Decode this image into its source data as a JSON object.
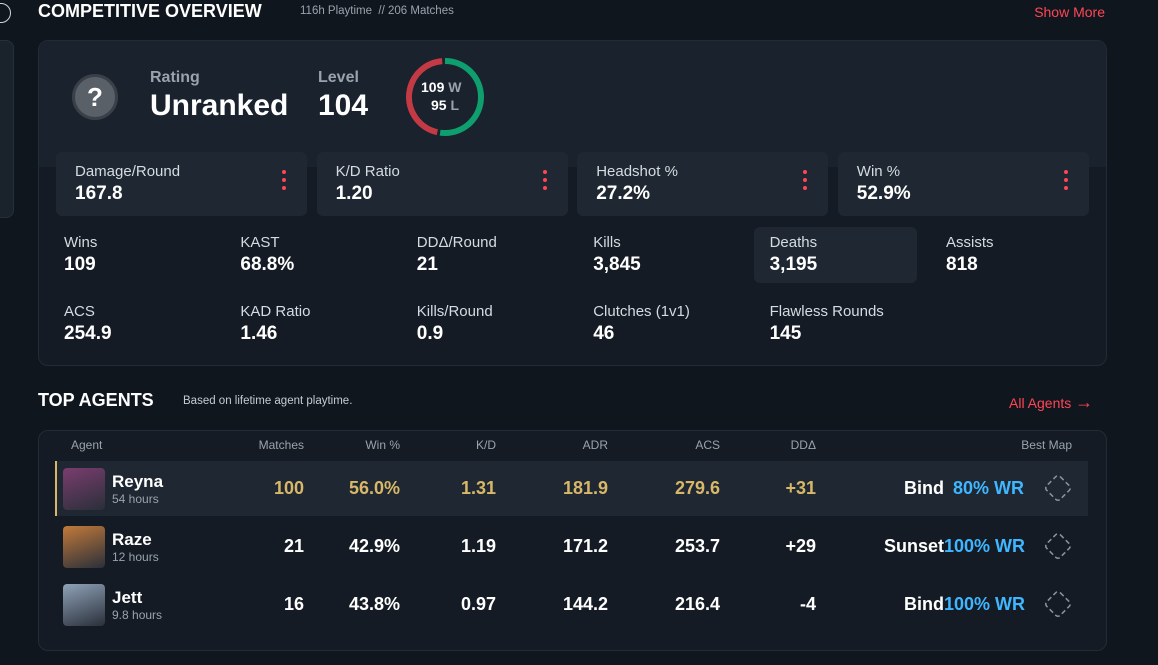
{
  "header": {
    "title": "COMPETITIVE OVERVIEW",
    "subtitle": "116h Playtime  // 206 Matches",
    "show_more": "Show More"
  },
  "overview": {
    "rating_label": "Rating",
    "rating": "Unranked",
    "level_label": "Level",
    "level": "104",
    "wins": 109,
    "wins_suffix": "W",
    "losses": 95,
    "losses_suffix": "L"
  },
  "main_stats": [
    {
      "label": "Damage/Round",
      "value": "167.8"
    },
    {
      "label": "K/D Ratio",
      "value": "1.20"
    },
    {
      "label": "Headshot %",
      "value": "27.2%"
    },
    {
      "label": "Win %",
      "value": "52.9%"
    }
  ],
  "stats": [
    {
      "label": "Wins",
      "value": "109"
    },
    {
      "label": "KAST",
      "value": "68.8%"
    },
    {
      "label": "DDΔ/Round",
      "value": "21"
    },
    {
      "label": "Kills",
      "value": "3,845"
    },
    {
      "label": "Deaths",
      "value": "3,195"
    },
    {
      "label": "Assists",
      "value": "818"
    },
    {
      "label": "ACS",
      "value": "254.9"
    },
    {
      "label": "KAD Ratio",
      "value": "1.46"
    },
    {
      "label": "Kills/Round",
      "value": "0.9"
    },
    {
      "label": "Clutches (1v1)",
      "value": "46"
    },
    {
      "label": "Flawless Rounds",
      "value": "145"
    }
  ],
  "agents_section": {
    "title": "TOP AGENTS",
    "subtitle": "Based on lifetime agent playtime.",
    "link": "All Agents"
  },
  "table": {
    "columns": [
      "Agent",
      "Matches",
      "Win %",
      "K/D",
      "ADR",
      "ACS",
      "DDΔ",
      "Best Map"
    ],
    "rows": [
      {
        "agent": "Reyna",
        "hours": "54 hours",
        "matches": "100",
        "win": "56.0%",
        "kd": "1.31",
        "adr": "181.9",
        "acs": "279.6",
        "ddd": "+31",
        "map": "Bind",
        "map_wr": "80% WR"
      },
      {
        "agent": "Raze",
        "hours": "12 hours",
        "matches": "21",
        "win": "42.9%",
        "kd": "1.19",
        "adr": "171.2",
        "acs": "253.7",
        "ddd": "+29",
        "map": "Sunset",
        "map_wr": "100% WR"
      },
      {
        "agent": "Jett",
        "hours": "9.8 hours",
        "matches": "16",
        "win": "43.8%",
        "kd": "0.97",
        "adr": "144.2",
        "acs": "216.4",
        "ddd": "-4",
        "map": "Bind",
        "map_wr": "100% WR"
      }
    ]
  }
}
